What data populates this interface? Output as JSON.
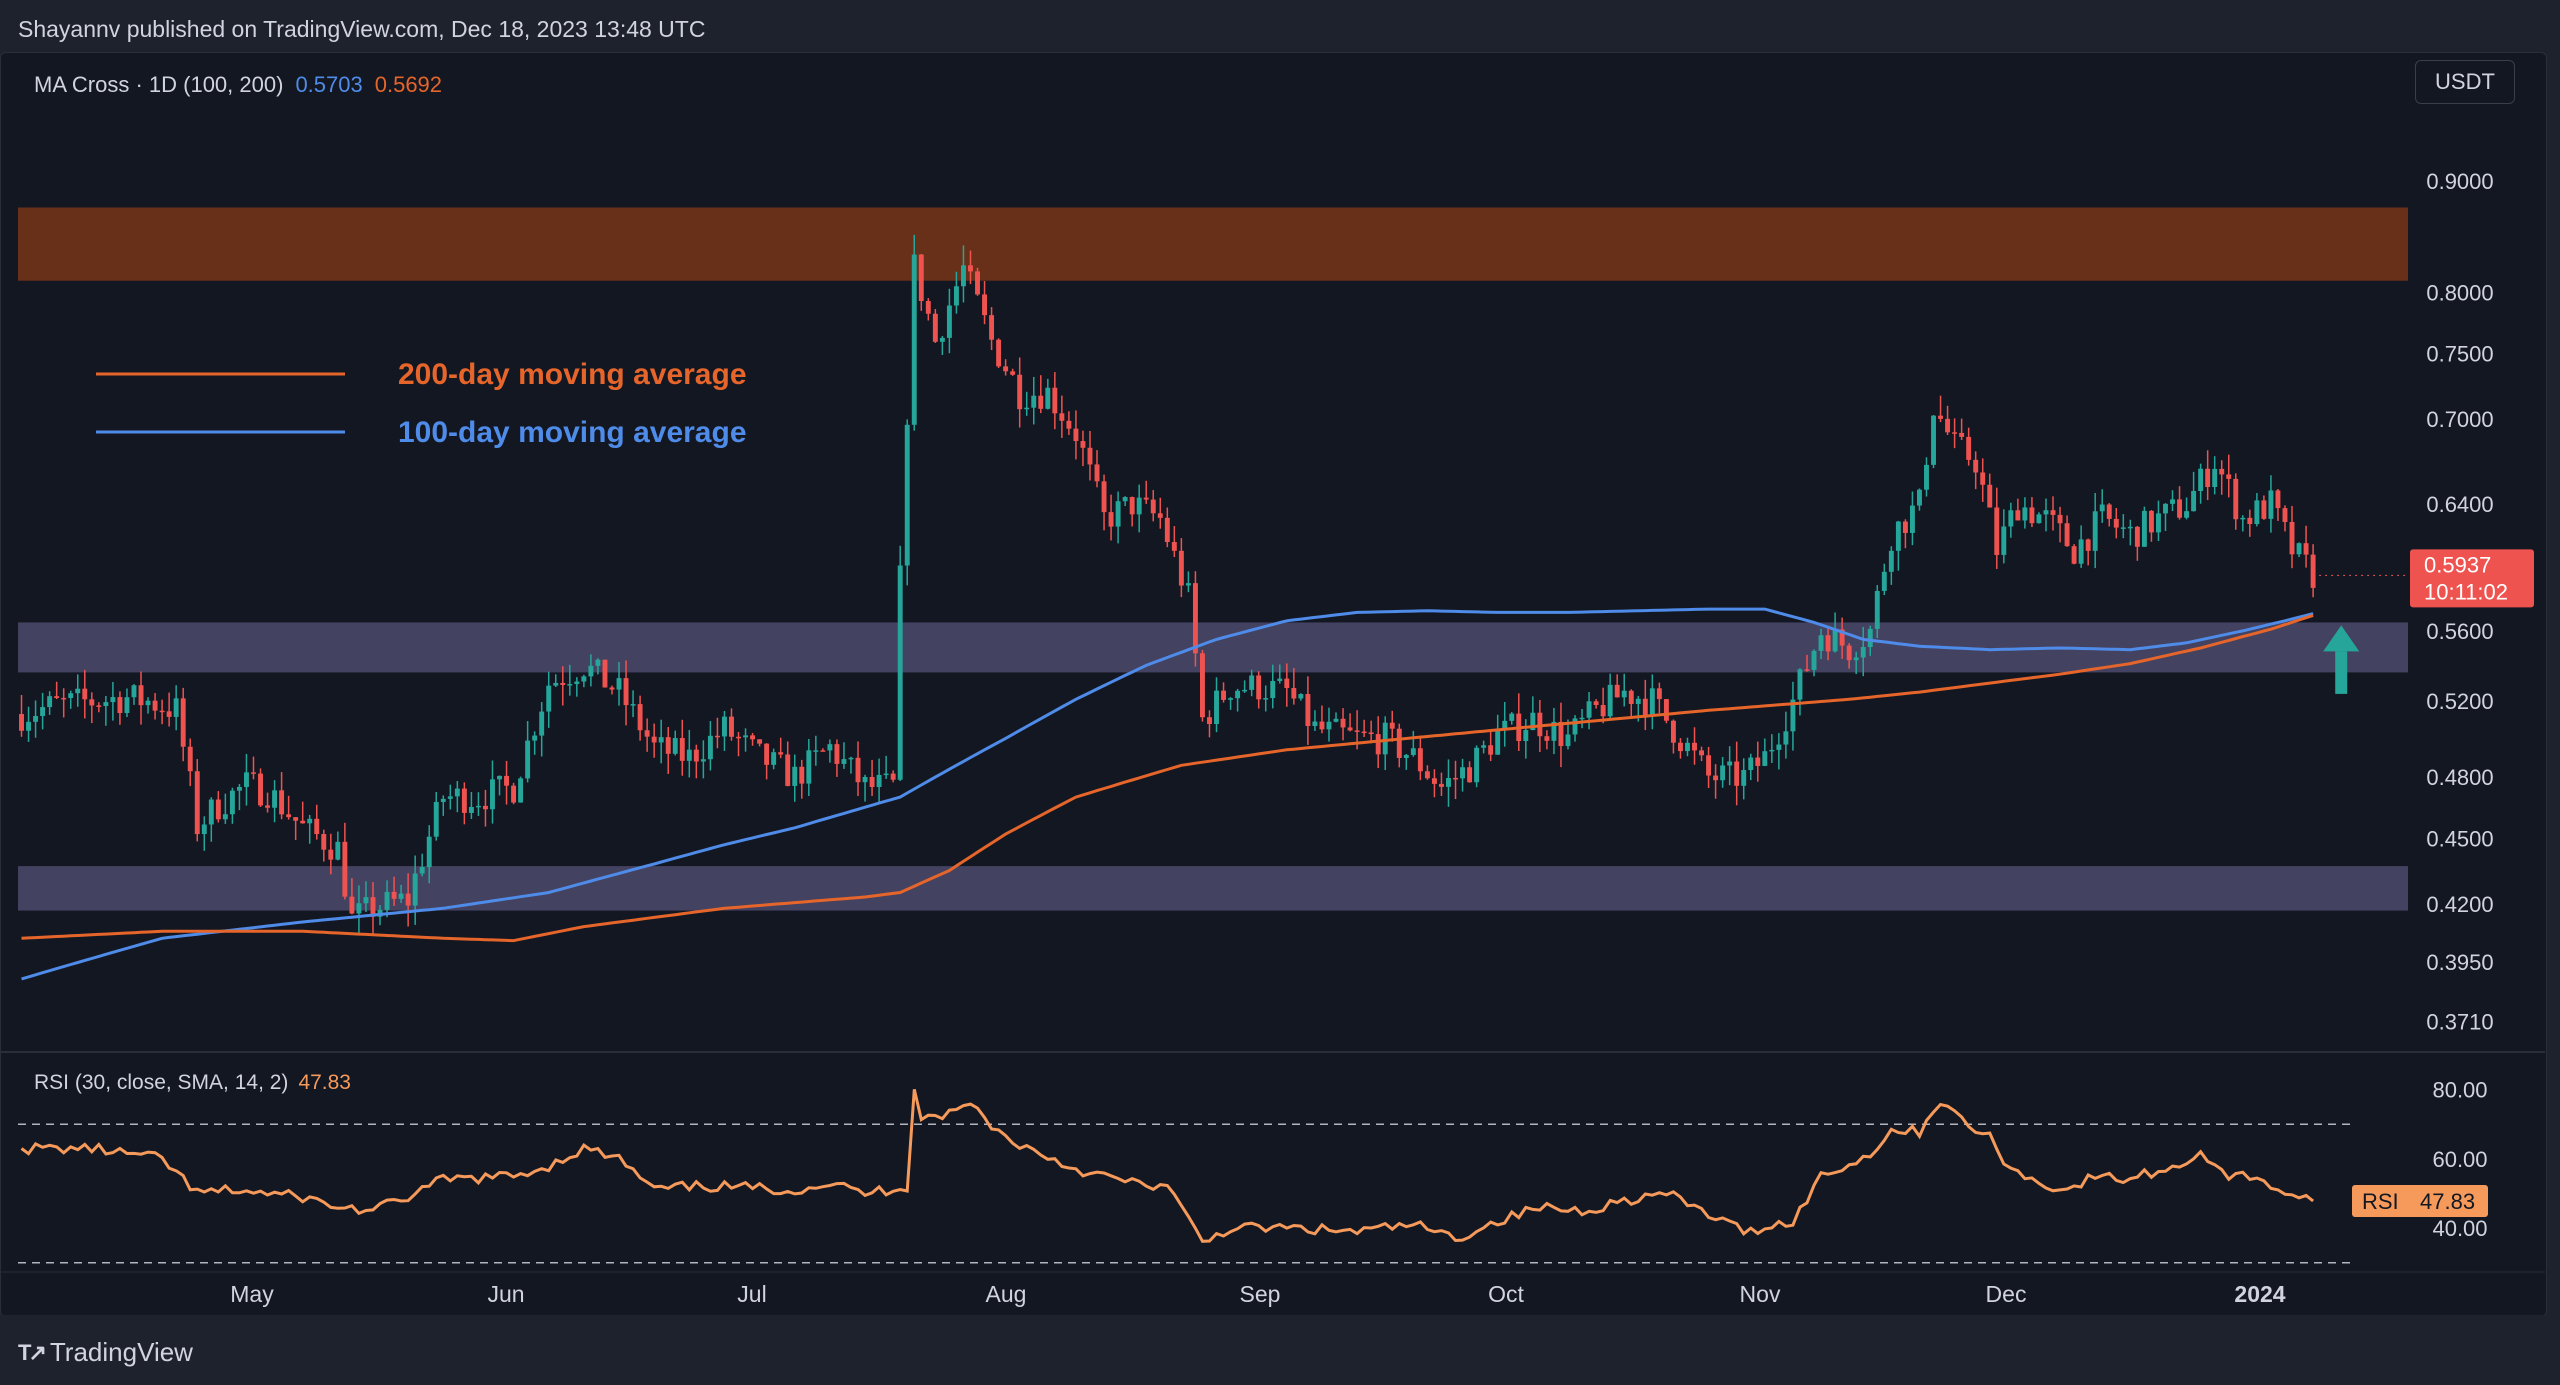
{
  "header": {
    "publish_line": "Shayannv published on TradingView.com, Dec 18, 2023 13:48 UTC"
  },
  "indicator_legend": {
    "label": "MA Cross · 1D (100, 200)",
    "ma100_value": "0.5703",
    "ma200_value": "0.5692"
  },
  "currency_button": "USDT",
  "rsi_legend": {
    "label": "RSI (30, close, SMA, 14, 2)",
    "value": "47.83"
  },
  "footer": {
    "brand": "TradingView"
  },
  "colors": {
    "background": "#131722",
    "ma200": "#e5652a",
    "ma100": "#4f8be8",
    "rsi": "#f59a5b",
    "candle_up": "#26a69a",
    "candle_down": "#ef5350",
    "resistance_zone": "#6e3219",
    "support_zone": "#4d4a6c",
    "arrow": "#26a69a"
  },
  "chart_data": {
    "type": "candlestick",
    "x_labels": [
      "May",
      "Jun",
      "Jul",
      "Aug",
      "Sep",
      "Oct",
      "Nov",
      "Dec",
      "2024"
    ],
    "price_ticks": [
      "0.9000",
      "0.8000",
      "0.7500",
      "0.7000",
      "0.6400",
      "0.5600",
      "0.5200",
      "0.4800",
      "0.4500",
      "0.4200",
      "0.3950",
      "0.3710"
    ],
    "price_scale": "log",
    "price_range": [
      0.36,
      0.98
    ],
    "last_price": "0.5937",
    "countdown": "10:11:02",
    "zones": [
      {
        "type": "resistance",
        "low": 0.81,
        "high": 0.875
      },
      {
        "type": "support",
        "low": 0.536,
        "high": 0.565
      },
      {
        "type": "support",
        "low": 0.417,
        "high": 0.437
      }
    ],
    "annotations": [
      {
        "text": "200-day moving average",
        "color": "#e5652a"
      },
      {
        "text": "100-day moving average",
        "color": "#4f8be8"
      }
    ],
    "ma100_anchors": [
      [
        0,
        0.388
      ],
      [
        20,
        0.405
      ],
      [
        40,
        0.412
      ],
      [
        60,
        0.418
      ],
      [
        75,
        0.425
      ],
      [
        90,
        0.438
      ],
      [
        100,
        0.447
      ],
      [
        110,
        0.455
      ],
      [
        120,
        0.465
      ],
      [
        125,
        0.47
      ],
      [
        130,
        0.48
      ],
      [
        140,
        0.5
      ],
      [
        150,
        0.521
      ],
      [
        160,
        0.54
      ],
      [
        170,
        0.555
      ],
      [
        180,
        0.566
      ],
      [
        190,
        0.571
      ],
      [
        200,
        0.572
      ],
      [
        210,
        0.571
      ],
      [
        220,
        0.571
      ],
      [
        230,
        0.572
      ],
      [
        240,
        0.573
      ],
      [
        248,
        0.573
      ],
      [
        255,
        0.565
      ],
      [
        262,
        0.555
      ],
      [
        270,
        0.551
      ],
      [
        280,
        0.549
      ],
      [
        290,
        0.55
      ],
      [
        300,
        0.549
      ],
      [
        308,
        0.553
      ],
      [
        316,
        0.56
      ],
      [
        322,
        0.566
      ],
      [
        326,
        0.5703
      ]
    ],
    "ma200_anchors": [
      [
        0,
        0.405
      ],
      [
        20,
        0.408
      ],
      [
        40,
        0.408
      ],
      [
        60,
        0.405
      ],
      [
        70,
        0.404
      ],
      [
        80,
        0.41
      ],
      [
        100,
        0.418
      ],
      [
        120,
        0.423
      ],
      [
        125,
        0.425
      ],
      [
        132,
        0.435
      ],
      [
        140,
        0.452
      ],
      [
        150,
        0.47
      ],
      [
        165,
        0.486
      ],
      [
        180,
        0.494
      ],
      [
        200,
        0.501
      ],
      [
        220,
        0.508
      ],
      [
        240,
        0.515
      ],
      [
        250,
        0.518
      ],
      [
        260,
        0.521
      ],
      [
        270,
        0.525
      ],
      [
        280,
        0.53
      ],
      [
        290,
        0.535
      ],
      [
        300,
        0.541
      ],
      [
        310,
        0.55
      ],
      [
        320,
        0.561
      ],
      [
        326,
        0.5692
      ]
    ],
    "ohlc_anchors": [
      [
        0,
        0.513
      ],
      [
        5,
        0.518
      ],
      [
        10,
        0.52
      ],
      [
        15,
        0.522
      ],
      [
        18,
        0.52
      ],
      [
        22,
        0.515
      ],
      [
        25,
        0.456
      ],
      [
        28,
        0.466
      ],
      [
        32,
        0.476
      ],
      [
        35,
        0.473
      ],
      [
        40,
        0.455
      ],
      [
        45,
        0.445
      ],
      [
        47,
        0.413
      ],
      [
        50,
        0.418
      ],
      [
        55,
        0.422
      ],
      [
        60,
        0.47
      ],
      [
        65,
        0.47
      ],
      [
        70,
        0.475
      ],
      [
        75,
        0.53
      ],
      [
        80,
        0.54
      ],
      [
        85,
        0.525
      ],
      [
        90,
        0.495
      ],
      [
        95,
        0.49
      ],
      [
        100,
        0.505
      ],
      [
        105,
        0.49
      ],
      [
        110,
        0.48
      ],
      [
        115,
        0.495
      ],
      [
        120,
        0.475
      ],
      [
        124,
        0.475
      ],
      [
        127,
        0.822
      ],
      [
        130,
        0.76
      ],
      [
        134,
        0.82
      ],
      [
        138,
        0.76
      ],
      [
        142,
        0.72
      ],
      [
        146,
        0.72
      ],
      [
        150,
        0.69
      ],
      [
        154,
        0.63
      ],
      [
        158,
        0.64
      ],
      [
        162,
        0.63
      ],
      [
        166,
        0.58
      ],
      [
        168,
        0.51
      ],
      [
        172,
        0.528
      ],
      [
        176,
        0.528
      ],
      [
        180,
        0.525
      ],
      [
        184,
        0.505
      ],
      [
        190,
        0.5
      ],
      [
        194,
        0.5
      ],
      [
        198,
        0.49
      ],
      [
        202,
        0.475
      ],
      [
        206,
        0.485
      ],
      [
        210,
        0.502
      ],
      [
        215,
        0.51
      ],
      [
        220,
        0.5
      ],
      [
        224,
        0.515
      ],
      [
        228,
        0.525
      ],
      [
        232,
        0.52
      ],
      [
        236,
        0.5
      ],
      [
        240,
        0.48
      ],
      [
        245,
        0.48
      ],
      [
        248,
        0.49
      ],
      [
        252,
        0.52
      ],
      [
        256,
        0.56
      ],
      [
        260,
        0.55
      ],
      [
        263,
        0.56
      ],
      [
        266,
        0.62
      ],
      [
        270,
        0.64
      ],
      [
        272,
        0.71
      ],
      [
        275,
        0.68
      ],
      [
        278,
        0.67
      ],
      [
        281,
        0.61
      ],
      [
        284,
        0.64
      ],
      [
        288,
        0.63
      ],
      [
        292,
        0.61
      ],
      [
        296,
        0.63
      ],
      [
        300,
        0.62
      ],
      [
        304,
        0.63
      ],
      [
        308,
        0.64
      ],
      [
        312,
        0.67
      ],
      [
        316,
        0.63
      ],
      [
        320,
        0.64
      ],
      [
        323,
        0.61
      ],
      [
        326,
        0.594
      ]
    ],
    "rsi": {
      "ticks": [
        "80.00",
        "60.00",
        "40.00"
      ],
      "upper_band": 70,
      "lower_band": 30,
      "anchors": [
        [
          0,
          63
        ],
        [
          10,
          63
        ],
        [
          20,
          60
        ],
        [
          25,
          50
        ],
        [
          30,
          51
        ],
        [
          40,
          49
        ],
        [
          45,
          46
        ],
        [
          50,
          45
        ],
        [
          55,
          49
        ],
        [
          60,
          54
        ],
        [
          70,
          55
        ],
        [
          75,
          58
        ],
        [
          80,
          63
        ],
        [
          85,
          60
        ],
        [
          90,
          51
        ],
        [
          95,
          52
        ],
        [
          100,
          52
        ],
        [
          110,
          51
        ],
        [
          115,
          53
        ],
        [
          120,
          50
        ],
        [
          126,
          52
        ],
        [
          127,
          81
        ],
        [
          128,
          72
        ],
        [
          132,
          73
        ],
        [
          135,
          76
        ],
        [
          140,
          66
        ],
        [
          150,
          57
        ],
        [
          158,
          53
        ],
        [
          163,
          52
        ],
        [
          168,
          36
        ],
        [
          172,
          40
        ],
        [
          180,
          40
        ],
        [
          190,
          39
        ],
        [
          198,
          41
        ],
        [
          204,
          37
        ],
        [
          210,
          42
        ],
        [
          216,
          46
        ],
        [
          222,
          45
        ],
        [
          228,
          48
        ],
        [
          234,
          50
        ],
        [
          240,
          44
        ],
        [
          245,
          39
        ],
        [
          252,
          42
        ],
        [
          256,
          55
        ],
        [
          262,
          60
        ],
        [
          266,
          68
        ],
        [
          270,
          68
        ],
        [
          273,
          77
        ],
        [
          276,
          71
        ],
        [
          280,
          66
        ],
        [
          283,
          57
        ],
        [
          287,
          53
        ],
        [
          291,
          51
        ],
        [
          295,
          55
        ],
        [
          299,
          54
        ],
        [
          303,
          56
        ],
        [
          306,
          57
        ],
        [
          310,
          62
        ],
        [
          314,
          55
        ],
        [
          318,
          55
        ],
        [
          322,
          50
        ],
        [
          326,
          47.83
        ]
      ]
    }
  }
}
